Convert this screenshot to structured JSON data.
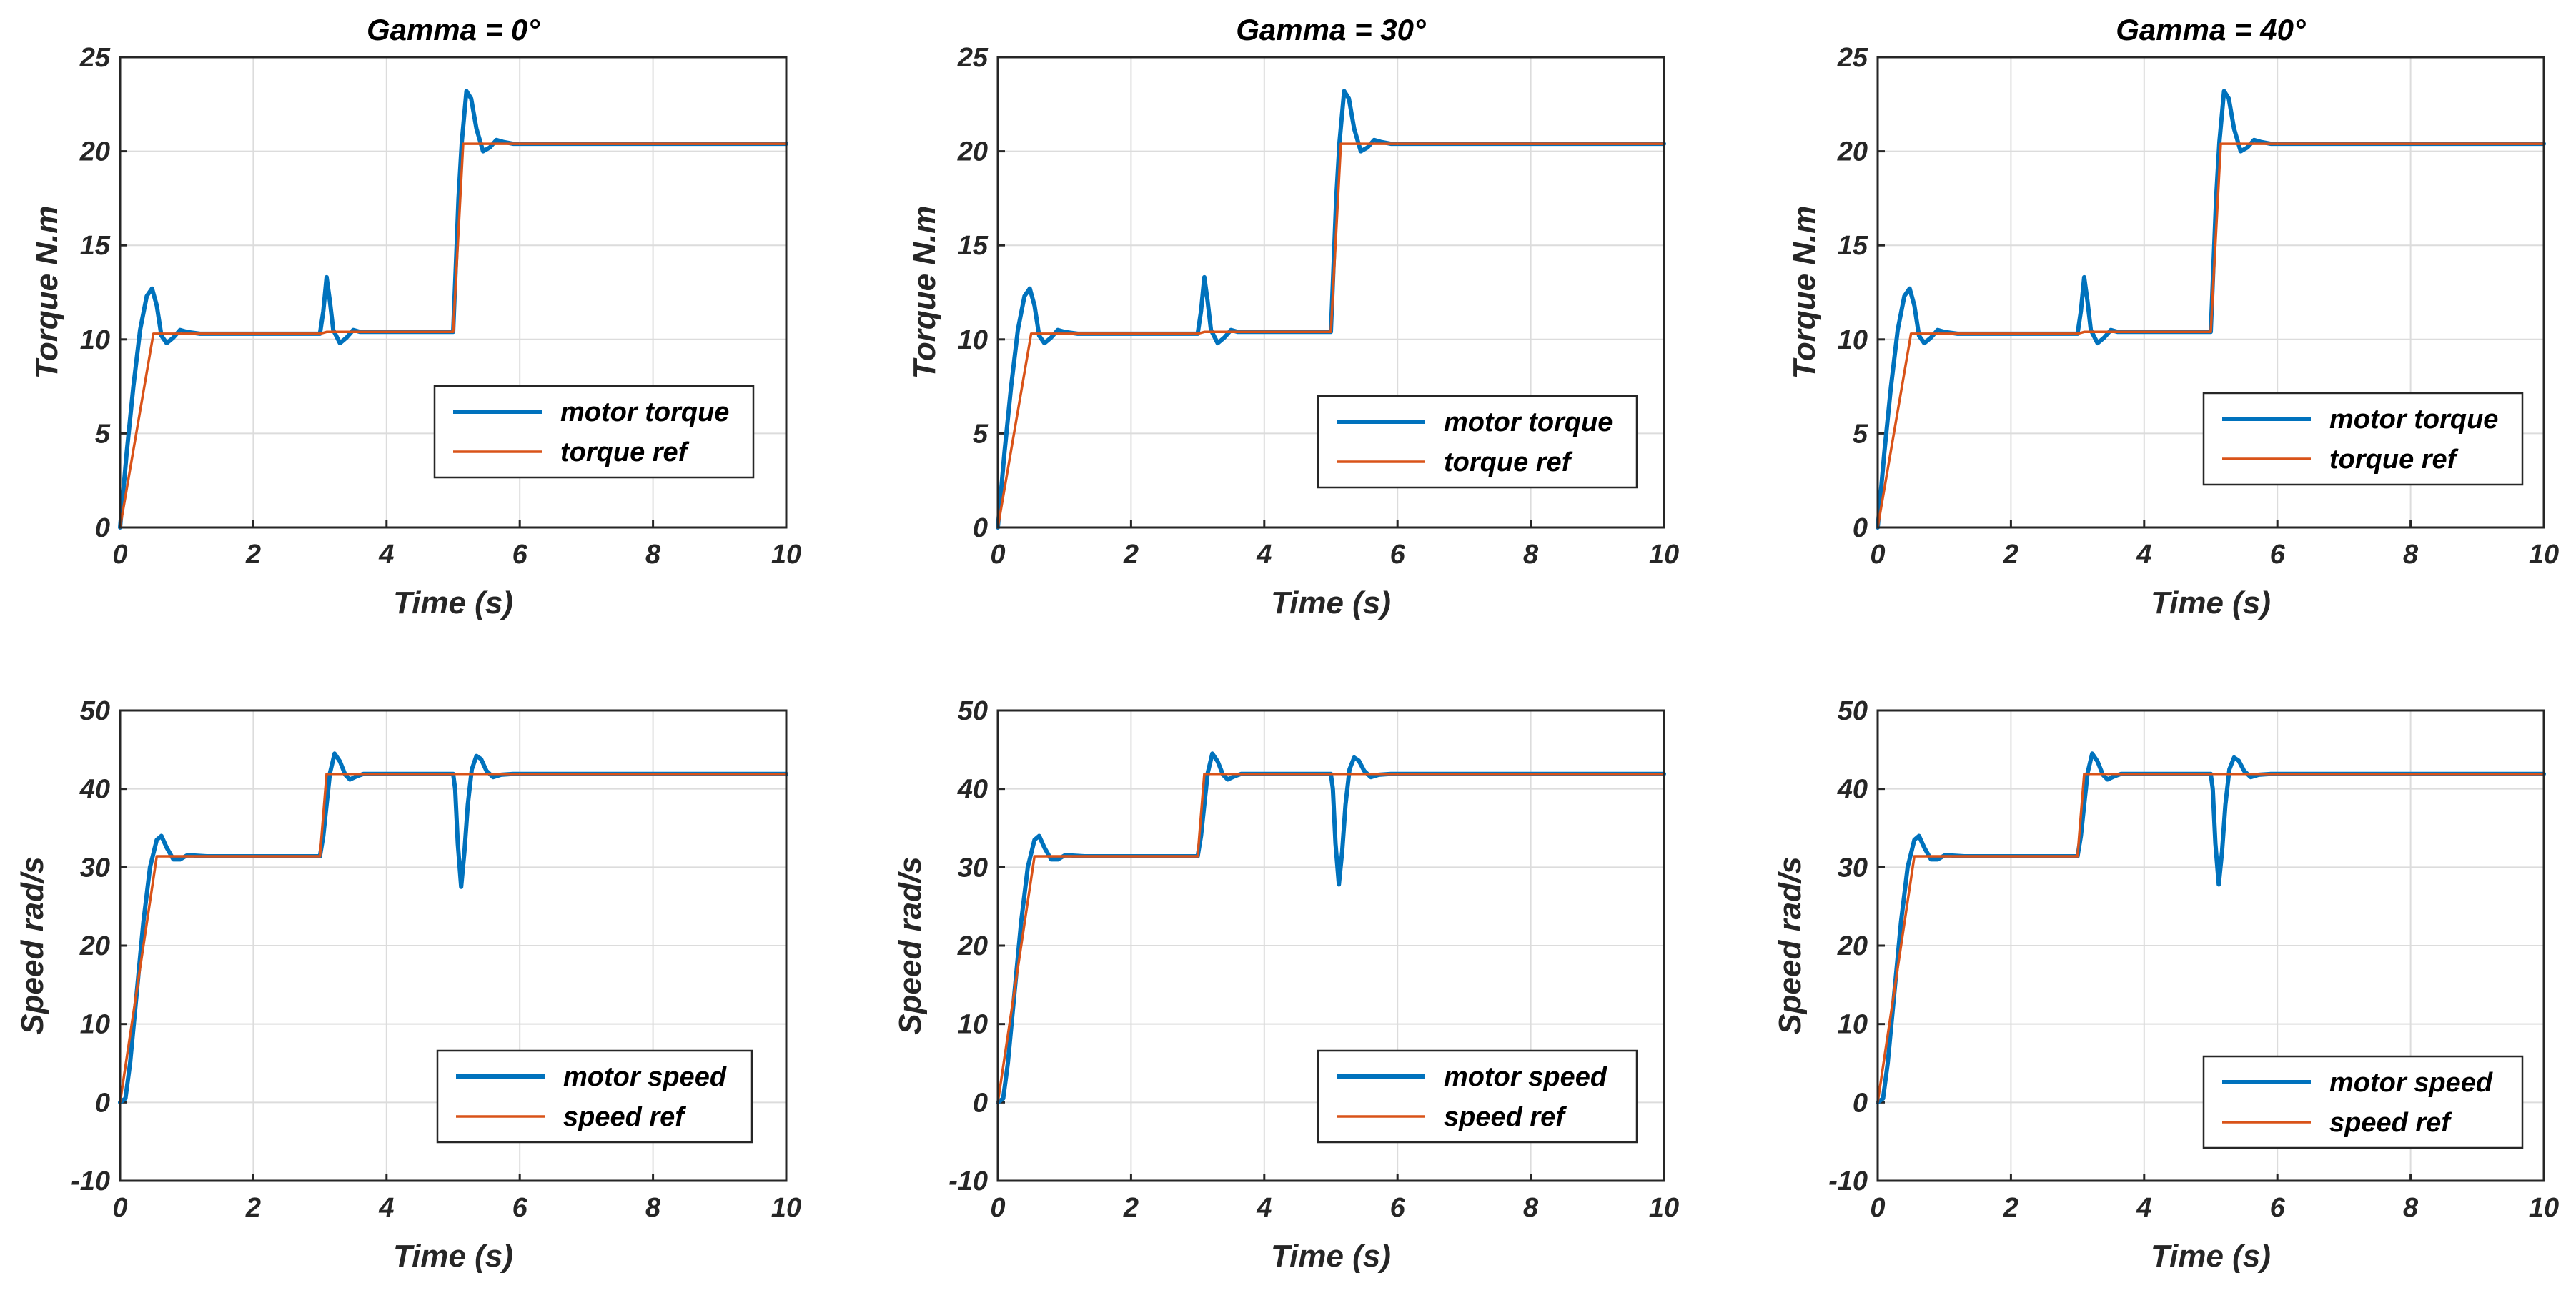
{
  "chart_data": [
    {
      "type": "line",
      "title": "Gamma = 0°",
      "xlabel": "Time (s)",
      "ylabel": "Torque N.m",
      "xlim": [
        0,
        10
      ],
      "ylim": [
        0,
        25
      ],
      "xticks": [
        "0",
        "2",
        "4",
        "6",
        "8",
        "10"
      ],
      "yticks": [
        "0",
        "5",
        "10",
        "15",
        "20",
        "25"
      ],
      "grid": true,
      "legend": "lower-right",
      "series": [
        {
          "name": "motor torque",
          "color": "#0072BD",
          "x": [
            0,
            0.1,
            0.2,
            0.3,
            0.4,
            0.48,
            0.55,
            0.62,
            0.7,
            0.8,
            0.9,
            1.0,
            1.2,
            3.0,
            3.05,
            3.1,
            3.15,
            3.2,
            3.3,
            3.4,
            3.5,
            3.6,
            3.8,
            5.0,
            5.03,
            5.08,
            5.13,
            5.2,
            5.27,
            5.35,
            5.45,
            5.55,
            5.65,
            5.75,
            5.9,
            10
          ],
          "y": [
            0,
            4,
            7.5,
            10.5,
            12.3,
            12.7,
            11.8,
            10.2,
            9.8,
            10.1,
            10.5,
            10.4,
            10.3,
            10.3,
            11.5,
            13.3,
            12.0,
            10.5,
            9.8,
            10.1,
            10.5,
            10.4,
            10.4,
            10.4,
            13,
            17.5,
            20.5,
            23.2,
            22.8,
            21.2,
            20.0,
            20.2,
            20.6,
            20.5,
            20.4,
            20.4
          ]
        },
        {
          "name": "torque ref",
          "color": "#D95319",
          "x": [
            0,
            0.5,
            3.0,
            3.1,
            5.0,
            5.15,
            10
          ],
          "y": [
            0,
            10.3,
            10.3,
            10.4,
            10.4,
            20.4,
            20.4
          ]
        }
      ]
    },
    {
      "type": "line",
      "title": "Gamma = 30°",
      "xlabel": "Time (s)",
      "ylabel": "Torque N.m",
      "xlim": [
        0,
        10
      ],
      "ylim": [
        0,
        25
      ],
      "xticks": [
        "0",
        "2",
        "4",
        "6",
        "8",
        "10"
      ],
      "yticks": [
        "0",
        "5",
        "10",
        "15",
        "20",
        "25"
      ],
      "grid": true,
      "legend": "lower-right",
      "series": [
        {
          "name": "motor torque",
          "color": "#0072BD",
          "x": [
            0,
            0.1,
            0.2,
            0.3,
            0.4,
            0.48,
            0.55,
            0.62,
            0.7,
            0.8,
            0.9,
            1.0,
            1.2,
            3.0,
            3.05,
            3.1,
            3.15,
            3.2,
            3.3,
            3.4,
            3.5,
            3.6,
            3.8,
            5.0,
            5.03,
            5.08,
            5.13,
            5.2,
            5.27,
            5.35,
            5.45,
            5.55,
            5.65,
            5.75,
            5.9,
            10
          ],
          "y": [
            0,
            4,
            7.5,
            10.5,
            12.3,
            12.7,
            11.8,
            10.2,
            9.8,
            10.1,
            10.5,
            10.4,
            10.3,
            10.3,
            11.5,
            13.3,
            12.0,
            10.5,
            9.8,
            10.1,
            10.5,
            10.4,
            10.4,
            10.4,
            13,
            17.5,
            20.5,
            23.2,
            22.8,
            21.2,
            20.0,
            20.2,
            20.6,
            20.5,
            20.4,
            20.4
          ]
        },
        {
          "name": "torque ref",
          "color": "#D95319",
          "x": [
            0,
            0.5,
            3.0,
            3.1,
            5.0,
            5.15,
            10
          ],
          "y": [
            0,
            10.3,
            10.3,
            10.4,
            10.4,
            20.4,
            20.4
          ]
        }
      ]
    },
    {
      "type": "line",
      "title": "Gamma = 40°",
      "xlabel": "Time (s)",
      "ylabel": "Torque N.m",
      "xlim": [
        0,
        10
      ],
      "ylim": [
        0,
        25
      ],
      "xticks": [
        "0",
        "2",
        "4",
        "6",
        "8",
        "10"
      ],
      "yticks": [
        "0",
        "5",
        "10",
        "15",
        "20",
        "25"
      ],
      "grid": true,
      "legend": "lower-right",
      "series": [
        {
          "name": "motor torque",
          "color": "#0072BD",
          "x": [
            0,
            0.1,
            0.2,
            0.3,
            0.4,
            0.48,
            0.55,
            0.62,
            0.7,
            0.8,
            0.9,
            1.0,
            1.2,
            3.0,
            3.05,
            3.1,
            3.15,
            3.2,
            3.3,
            3.4,
            3.5,
            3.6,
            3.8,
            5.0,
            5.03,
            5.08,
            5.13,
            5.2,
            5.27,
            5.35,
            5.45,
            5.55,
            5.65,
            5.75,
            5.9,
            10
          ],
          "y": [
            0,
            4,
            7.5,
            10.5,
            12.3,
            12.7,
            11.8,
            10.2,
            9.8,
            10.1,
            10.5,
            10.4,
            10.3,
            10.3,
            11.5,
            13.3,
            12.0,
            10.5,
            9.8,
            10.1,
            10.5,
            10.4,
            10.4,
            10.4,
            13,
            17.5,
            20.5,
            23.2,
            22.8,
            21.2,
            20.0,
            20.2,
            20.6,
            20.5,
            20.4,
            20.4
          ]
        },
        {
          "name": "torque ref",
          "color": "#D95319",
          "x": [
            0,
            0.5,
            3.0,
            3.1,
            5.0,
            5.15,
            10
          ],
          "y": [
            0,
            10.3,
            10.3,
            10.4,
            10.4,
            20.4,
            20.4
          ]
        }
      ]
    },
    {
      "type": "line",
      "title": "",
      "xlabel": "Time (s)",
      "ylabel": "Speed rad/s",
      "xlim": [
        0,
        10
      ],
      "ylim": [
        -10,
        50
      ],
      "xticks": [
        "0",
        "2",
        "4",
        "6",
        "8",
        "10"
      ],
      "yticks": [
        "-10",
        "0",
        "10",
        "20",
        "30",
        "40",
        "50"
      ],
      "grid": true,
      "legend": "lower-right",
      "series": [
        {
          "name": "motor speed",
          "color": "#0072BD",
          "x": [
            0,
            0.08,
            0.15,
            0.25,
            0.35,
            0.45,
            0.55,
            0.62,
            0.7,
            0.8,
            0.9,
            1.0,
            1.1,
            1.3,
            3.0,
            3.05,
            3.1,
            3.15,
            3.22,
            3.3,
            3.38,
            3.45,
            3.55,
            3.65,
            3.8,
            5.0,
            5.03,
            5.07,
            5.12,
            5.17,
            5.22,
            5.28,
            5.35,
            5.42,
            5.5,
            5.6,
            5.72,
            5.9,
            10
          ],
          "y": [
            0,
            0.5,
            5,
            14,
            23,
            30,
            33.5,
            34,
            32.5,
            31,
            31,
            31.5,
            31.5,
            31.4,
            31.4,
            34,
            38,
            42,
            44.5,
            43.5,
            41.8,
            41.2,
            41.6,
            41.9,
            41.9,
            41.9,
            40,
            33,
            27.5,
            32,
            38,
            42.5,
            44.2,
            43.8,
            42.3,
            41.5,
            41.8,
            41.9,
            41.9
          ]
        },
        {
          "name": "speed ref",
          "color": "#D95319",
          "x": [
            0,
            0.55,
            3.0,
            3.1,
            10
          ],
          "y": [
            0,
            31.4,
            31.4,
            41.9,
            41.9
          ]
        }
      ]
    },
    {
      "type": "line",
      "title": "",
      "xlabel": "Time (s)",
      "ylabel": "Speed rad/s",
      "xlim": [
        0,
        10
      ],
      "ylim": [
        -10,
        50
      ],
      "xticks": [
        "0",
        "2",
        "4",
        "6",
        "8",
        "10"
      ],
      "yticks": [
        "-10",
        "0",
        "10",
        "20",
        "30",
        "40",
        "50"
      ],
      "grid": true,
      "legend": "lower-right",
      "series": [
        {
          "name": "motor speed",
          "color": "#0072BD",
          "x": [
            0,
            0.08,
            0.15,
            0.25,
            0.35,
            0.45,
            0.55,
            0.62,
            0.7,
            0.8,
            0.9,
            1.0,
            1.1,
            1.3,
            3.0,
            3.05,
            3.1,
            3.15,
            3.22,
            3.3,
            3.38,
            3.45,
            3.55,
            3.65,
            3.8,
            5.0,
            5.03,
            5.07,
            5.12,
            5.17,
            5.22,
            5.28,
            5.35,
            5.42,
            5.5,
            5.6,
            5.72,
            5.9,
            10
          ],
          "y": [
            0,
            0.5,
            5,
            14,
            23,
            30,
            33.5,
            34,
            32.5,
            31,
            31,
            31.5,
            31.5,
            31.4,
            31.4,
            34,
            38,
            42,
            44.5,
            43.5,
            41.8,
            41.2,
            41.6,
            41.9,
            41.9,
            41.9,
            40,
            33,
            27.8,
            32,
            38,
            42.5,
            44.0,
            43.6,
            42.3,
            41.5,
            41.8,
            41.9,
            41.9
          ]
        },
        {
          "name": "speed ref",
          "color": "#D95319",
          "x": [
            0,
            0.55,
            3.0,
            3.1,
            10
          ],
          "y": [
            0,
            31.4,
            31.4,
            41.9,
            41.9
          ]
        }
      ]
    },
    {
      "type": "line",
      "title": "",
      "xlabel": "Time (s)",
      "ylabel": "Speed rad/s",
      "xlim": [
        0,
        10
      ],
      "ylim": [
        -10,
        50
      ],
      "xticks": [
        "0",
        "2",
        "4",
        "6",
        "8",
        "10"
      ],
      "yticks": [
        "-10",
        "0",
        "10",
        "20",
        "30",
        "40",
        "50"
      ],
      "grid": true,
      "legend": "lower-right",
      "series": [
        {
          "name": "motor speed",
          "color": "#0072BD",
          "x": [
            0,
            0.08,
            0.15,
            0.25,
            0.35,
            0.45,
            0.55,
            0.62,
            0.7,
            0.8,
            0.9,
            1.0,
            1.1,
            1.3,
            3.0,
            3.05,
            3.1,
            3.15,
            3.22,
            3.3,
            3.38,
            3.45,
            3.55,
            3.65,
            3.8,
            5.0,
            5.03,
            5.07,
            5.12,
            5.17,
            5.22,
            5.28,
            5.35,
            5.42,
            5.5,
            5.6,
            5.72,
            5.9,
            10
          ],
          "y": [
            0,
            0.5,
            5,
            14,
            23,
            30,
            33.5,
            34,
            32.5,
            31,
            31,
            31.5,
            31.5,
            31.4,
            31.4,
            34,
            38,
            42,
            44.5,
            43.5,
            41.8,
            41.2,
            41.6,
            41.9,
            41.9,
            41.9,
            40,
            33,
            27.8,
            32,
            38,
            42.5,
            44.0,
            43.6,
            42.3,
            41.5,
            41.8,
            41.9,
            41.9
          ]
        },
        {
          "name": "speed ref",
          "color": "#D95319",
          "x": [
            0,
            0.55,
            3.0,
            3.1,
            10
          ],
          "y": [
            0,
            31.4,
            31.4,
            41.9,
            41.9
          ]
        }
      ]
    }
  ]
}
